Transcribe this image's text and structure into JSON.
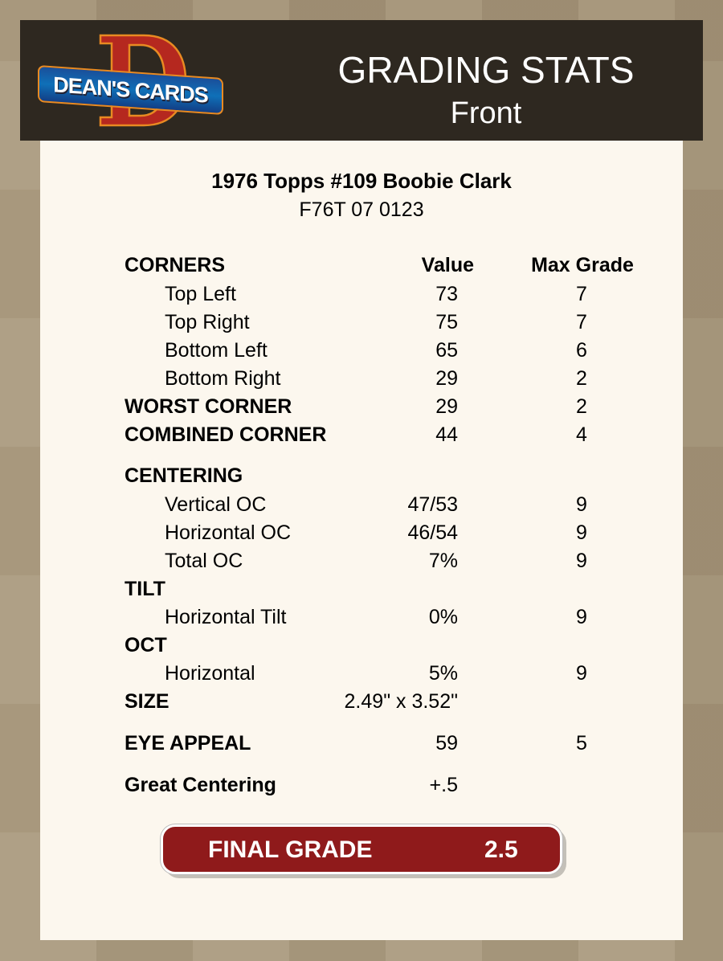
{
  "header": {
    "logo_text": "DEAN'S CARDS",
    "title": "GRADING STATS",
    "subtitle": "Front"
  },
  "card": {
    "name": "1976 Topps #109 Boobie Clark",
    "cert": "F76T 07 0123"
  },
  "columns": {
    "label": "CORNERS",
    "value": "Value",
    "max": "Max Grade"
  },
  "rows": [
    {
      "label": "Top Left",
      "value": "73",
      "max": "7",
      "style": "sub"
    },
    {
      "label": "Top Right",
      "value": "75",
      "max": "7",
      "style": "sub"
    },
    {
      "label": "Bottom Left",
      "value": "65",
      "max": "6",
      "style": "sub"
    },
    {
      "label": "Bottom Right",
      "value": "29",
      "max": "2",
      "style": "sub"
    },
    {
      "label": "WORST CORNER",
      "value": "29",
      "max": "2",
      "style": "bold"
    },
    {
      "label": "COMBINED CORNER",
      "value": "44",
      "max": "4",
      "style": "bold"
    },
    {
      "label": "CENTERING",
      "value": "",
      "max": "",
      "style": "bold"
    },
    {
      "label": "Vertical OC",
      "value": "47/53",
      "max": "9",
      "style": "sub"
    },
    {
      "label": "Horizontal OC",
      "value": "46/54",
      "max": "9",
      "style": "sub"
    },
    {
      "label": "Total OC",
      "value": "7%",
      "max": "9",
      "style": "sub"
    },
    {
      "label": "TILT",
      "value": "",
      "max": "",
      "style": "bold"
    },
    {
      "label": "Horizontal Tilt",
      "value": "0%",
      "max": "9",
      "style": "sub"
    },
    {
      "label": "OCT",
      "value": "",
      "max": "",
      "style": "bold"
    },
    {
      "label": "Horizontal",
      "value": "5%",
      "max": "9",
      "style": "sub"
    },
    {
      "label": "SIZE",
      "value": "2.49\" x 3.52\"",
      "max": "",
      "style": "bold"
    },
    {
      "label": "EYE APPEAL",
      "value": "59",
      "max": "5",
      "style": "bold"
    },
    {
      "label": "Great Centering",
      "value": "+.5",
      "max": "",
      "style": "bold"
    }
  ],
  "final": {
    "label": "FINAL GRADE",
    "value": "2.5"
  },
  "colors": {
    "header_bg": "#2e2820",
    "panel_bg": "#fcf7ee",
    "final_bg": "#8f1a1b",
    "page_bg": "#a8977a"
  }
}
